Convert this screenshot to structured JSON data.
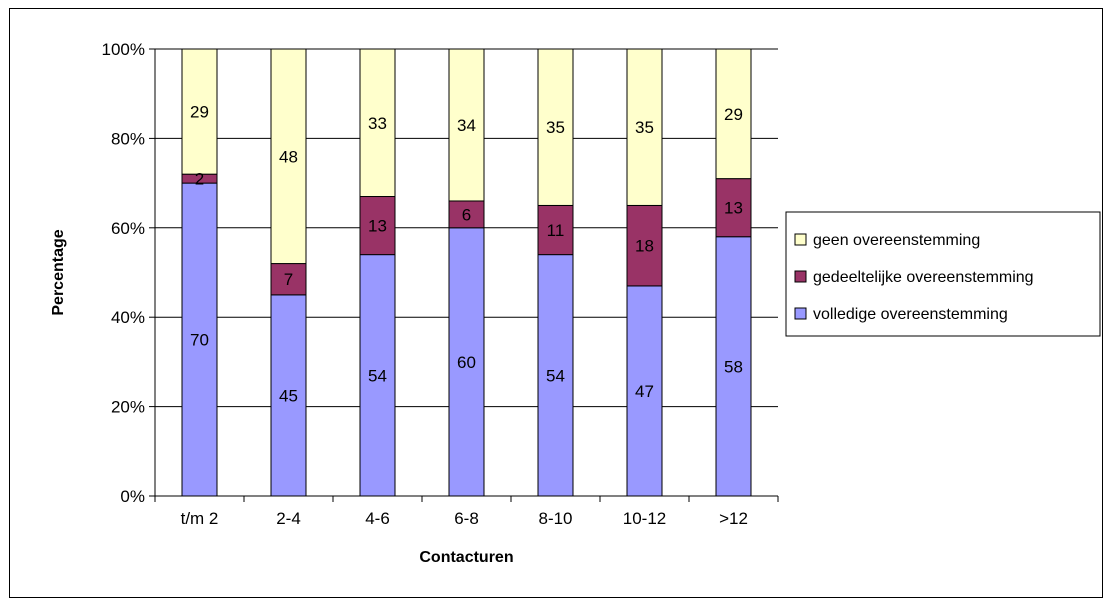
{
  "chart_data": {
    "type": "bar",
    "stacked": true,
    "percent": true,
    "categories": [
      "t/m 2",
      "2-4",
      "4-6",
      "6-8",
      "8-10",
      "10-12",
      ">12"
    ],
    "series": [
      {
        "name": "volledige overeenstemming",
        "values": [
          70,
          45,
          54,
          60,
          54,
          47,
          58
        ],
        "color": "#9999FF"
      },
      {
        "name": "gedeeltelijke overeenstemming",
        "values": [
          2,
          7,
          13,
          6,
          11,
          18,
          13
        ],
        "color": "#993366"
      },
      {
        "name": "geen overeenstemming",
        "values": [
          29,
          48,
          33,
          34,
          35,
          35,
          29
        ],
        "color": "#FFFFCC"
      }
    ],
    "title": "",
    "xlabel": "Contacturen",
    "ylabel": "Percentage",
    "ylim": [
      0,
      100
    ],
    "yticks": [
      "0%",
      "20%",
      "40%",
      "60%",
      "80%",
      "100%"
    ],
    "grid": true,
    "legend_position": "right",
    "legend_order": [
      "geen overeenstemming",
      "gedeeltelijke overeenstemming",
      "volledige overeenstemming"
    ]
  }
}
